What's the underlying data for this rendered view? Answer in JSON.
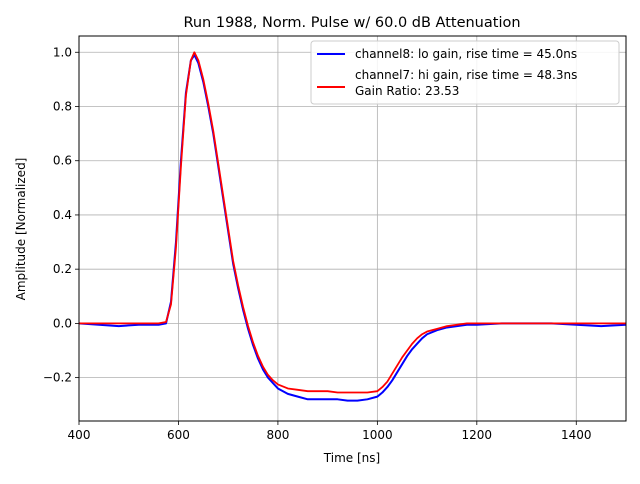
{
  "chart_data": {
    "type": "line",
    "title": "Run 1988, Norm. Pulse w/ 60.0 dB Attenuation",
    "xlabel": "Time [ns]",
    "ylabel": "Amplitude [Normalized]",
    "xlim": [
      400,
      1500
    ],
    "ylim": [
      -0.36,
      1.06
    ],
    "xticks": [
      400,
      600,
      800,
      1000,
      1200,
      1400
    ],
    "xtick_labels": [
      "400",
      "600",
      "800",
      "1000",
      "1200",
      "1400"
    ],
    "yticks": [
      -0.2,
      0.0,
      0.2,
      0.4,
      0.6,
      0.8,
      1.0
    ],
    "ytick_labels": [
      "−0.2",
      "0.0",
      "0.2",
      "0.4",
      "0.6",
      "0.8",
      "1.0"
    ],
    "grid": true,
    "legend_position": "top-right",
    "legend_extra_line": "Gain Ratio: 23.53",
    "series": [
      {
        "name": "channel8: lo gain, rise time = 45.0ns",
        "color": "#0000ff",
        "x": [
          400,
          440,
          480,
          520,
          560,
          575,
          585,
          595,
          605,
          615,
          625,
          632,
          640,
          650,
          660,
          670,
          680,
          690,
          700,
          710,
          720,
          730,
          740,
          750,
          760,
          770,
          780,
          790,
          800,
          820,
          840,
          860,
          880,
          900,
          920,
          940,
          960,
          980,
          1000,
          1010,
          1020,
          1030,
          1040,
          1050,
          1060,
          1070,
          1080,
          1090,
          1100,
          1120,
          1140,
          1160,
          1180,
          1200,
          1250,
          1300,
          1350,
          1400,
          1450,
          1500
        ],
        "y": [
          0.0,
          -0.005,
          -0.01,
          -0.005,
          -0.005,
          0.0,
          0.08,
          0.3,
          0.6,
          0.85,
          0.97,
          0.99,
          0.96,
          0.89,
          0.8,
          0.7,
          0.58,
          0.46,
          0.34,
          0.22,
          0.13,
          0.05,
          -0.02,
          -0.08,
          -0.13,
          -0.17,
          -0.2,
          -0.22,
          -0.24,
          -0.26,
          -0.27,
          -0.28,
          -0.28,
          -0.28,
          -0.28,
          -0.285,
          -0.285,
          -0.28,
          -0.27,
          -0.255,
          -0.235,
          -0.21,
          -0.18,
          -0.15,
          -0.12,
          -0.095,
          -0.075,
          -0.055,
          -0.04,
          -0.025,
          -0.015,
          -0.01,
          -0.005,
          -0.005,
          0.0,
          0.0,
          0.0,
          -0.005,
          -0.01,
          -0.005
        ]
      },
      {
        "name": "channel7: hi gain, rise time = 48.3ns",
        "color": "#ff0000",
        "x": [
          400,
          440,
          480,
          520,
          560,
          575,
          585,
          595,
          605,
          615,
          625,
          632,
          640,
          650,
          660,
          670,
          680,
          690,
          700,
          710,
          720,
          730,
          740,
          750,
          760,
          770,
          780,
          790,
          800,
          820,
          840,
          860,
          880,
          900,
          920,
          940,
          960,
          980,
          1000,
          1010,
          1020,
          1030,
          1040,
          1050,
          1060,
          1070,
          1080,
          1090,
          1100,
          1120,
          1140,
          1160,
          1180,
          1200,
          1250,
          1300,
          1350,
          1400,
          1450,
          1500
        ],
        "y": [
          0.0,
          0.0,
          0.0,
          0.0,
          0.0,
          0.005,
          0.07,
          0.28,
          0.58,
          0.84,
          0.97,
          1.0,
          0.97,
          0.9,
          0.81,
          0.71,
          0.59,
          0.47,
          0.35,
          0.23,
          0.14,
          0.06,
          -0.01,
          -0.07,
          -0.12,
          -0.16,
          -0.19,
          -0.21,
          -0.225,
          -0.24,
          -0.245,
          -0.25,
          -0.25,
          -0.25,
          -0.255,
          -0.255,
          -0.255,
          -0.255,
          -0.25,
          -0.235,
          -0.215,
          -0.185,
          -0.155,
          -0.125,
          -0.1,
          -0.075,
          -0.055,
          -0.04,
          -0.03,
          -0.02,
          -0.01,
          -0.005,
          0.0,
          0.0,
          0.0,
          0.0,
          0.0,
          0.0,
          0.0,
          0.0
        ]
      }
    ]
  }
}
